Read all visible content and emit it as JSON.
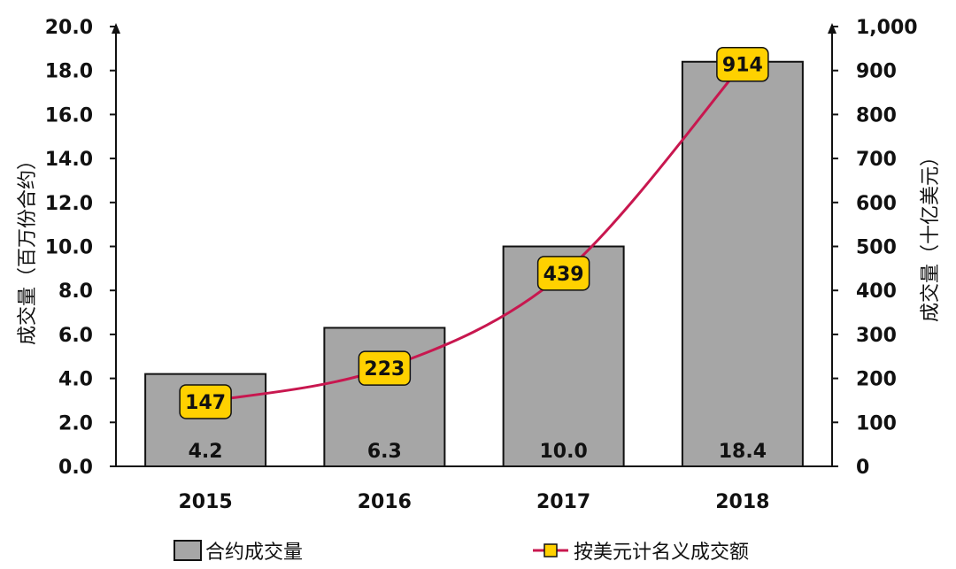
{
  "chart_data": {
    "type": "bar",
    "categories": [
      "2015",
      "2016",
      "2017",
      "2018"
    ],
    "series": [
      {
        "name": "合约成交量",
        "type": "bar",
        "axis": "left",
        "values": [
          4.2,
          6.3,
          10.0,
          18.4
        ],
        "labels": [
          "4.2",
          "6.3",
          "10.0",
          "18.4"
        ]
      },
      {
        "name": "按美元计名义成交额",
        "type": "line",
        "axis": "right",
        "values": [
          147,
          223,
          439,
          914
        ],
        "labels": [
          "147",
          "223",
          "439",
          "914"
        ]
      }
    ],
    "y_left": {
      "label": "成交量（百万份合约）",
      "ylim": [
        0,
        20
      ],
      "ticks": [
        0,
        2,
        4,
        6,
        8,
        10,
        12,
        14,
        16,
        18,
        20
      ],
      "tick_labels": [
        "0.0",
        "2.0",
        "4.0",
        "6.0",
        "8.0",
        "10.0",
        "12.0",
        "14.0",
        "16.0",
        "18.0",
        "20.0"
      ]
    },
    "y_right": {
      "label": "成交量（十亿美元）",
      "ylim": [
        0,
        1000
      ],
      "ticks": [
        0,
        100,
        200,
        300,
        400,
        500,
        600,
        700,
        800,
        900,
        1000
      ],
      "tick_labels": [
        "0",
        "100",
        "200",
        "300",
        "400",
        "500",
        "600",
        "700",
        "800",
        "900",
        "1,000"
      ]
    },
    "grid": false,
    "legend": {
      "position": "bottom"
    }
  },
  "colors": {
    "bar_fill": "#a6a6a6",
    "bar_stroke": "#111111",
    "line": "#c8174f",
    "label_box": "#ffd100",
    "axis": "#111111"
  }
}
